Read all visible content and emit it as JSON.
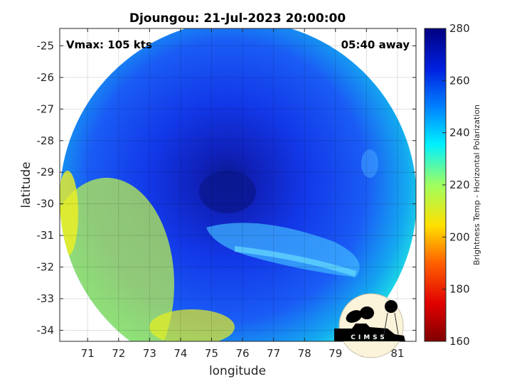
{
  "title": "Djoungou: 21-Jul-2023 20:00:00",
  "annotations": {
    "vmax": "Vmax: 105 kts",
    "away": "05:40 away"
  },
  "axes": {
    "xlabel": "longitude",
    "ylabel": "latitude",
    "xticks": [
      "71",
      "72",
      "73",
      "74",
      "75",
      "76",
      "77",
      "78",
      "79",
      "80",
      "81"
    ],
    "yticks": [
      "-25",
      "-26",
      "-27",
      "-28",
      "-29",
      "-30",
      "-31",
      "-32",
      "-33",
      "-34"
    ],
    "xlim": [
      70.1,
      81.6
    ],
    "ylim": [
      -34.35,
      -24.45
    ],
    "grid": true
  },
  "colorbar": {
    "label": "Brightness Temp - Horizontal Polarization",
    "ticks": [
      "160",
      "180",
      "200",
      "220",
      "240",
      "260",
      "280"
    ],
    "range": [
      160,
      280
    ],
    "colormap": "jet"
  },
  "logo": {
    "text": "CIMSS"
  },
  "colors": {
    "eye": "#0a1a8c",
    "core": "#1030e0",
    "outer": "#00e0ff",
    "warm": "#e8f020"
  }
}
